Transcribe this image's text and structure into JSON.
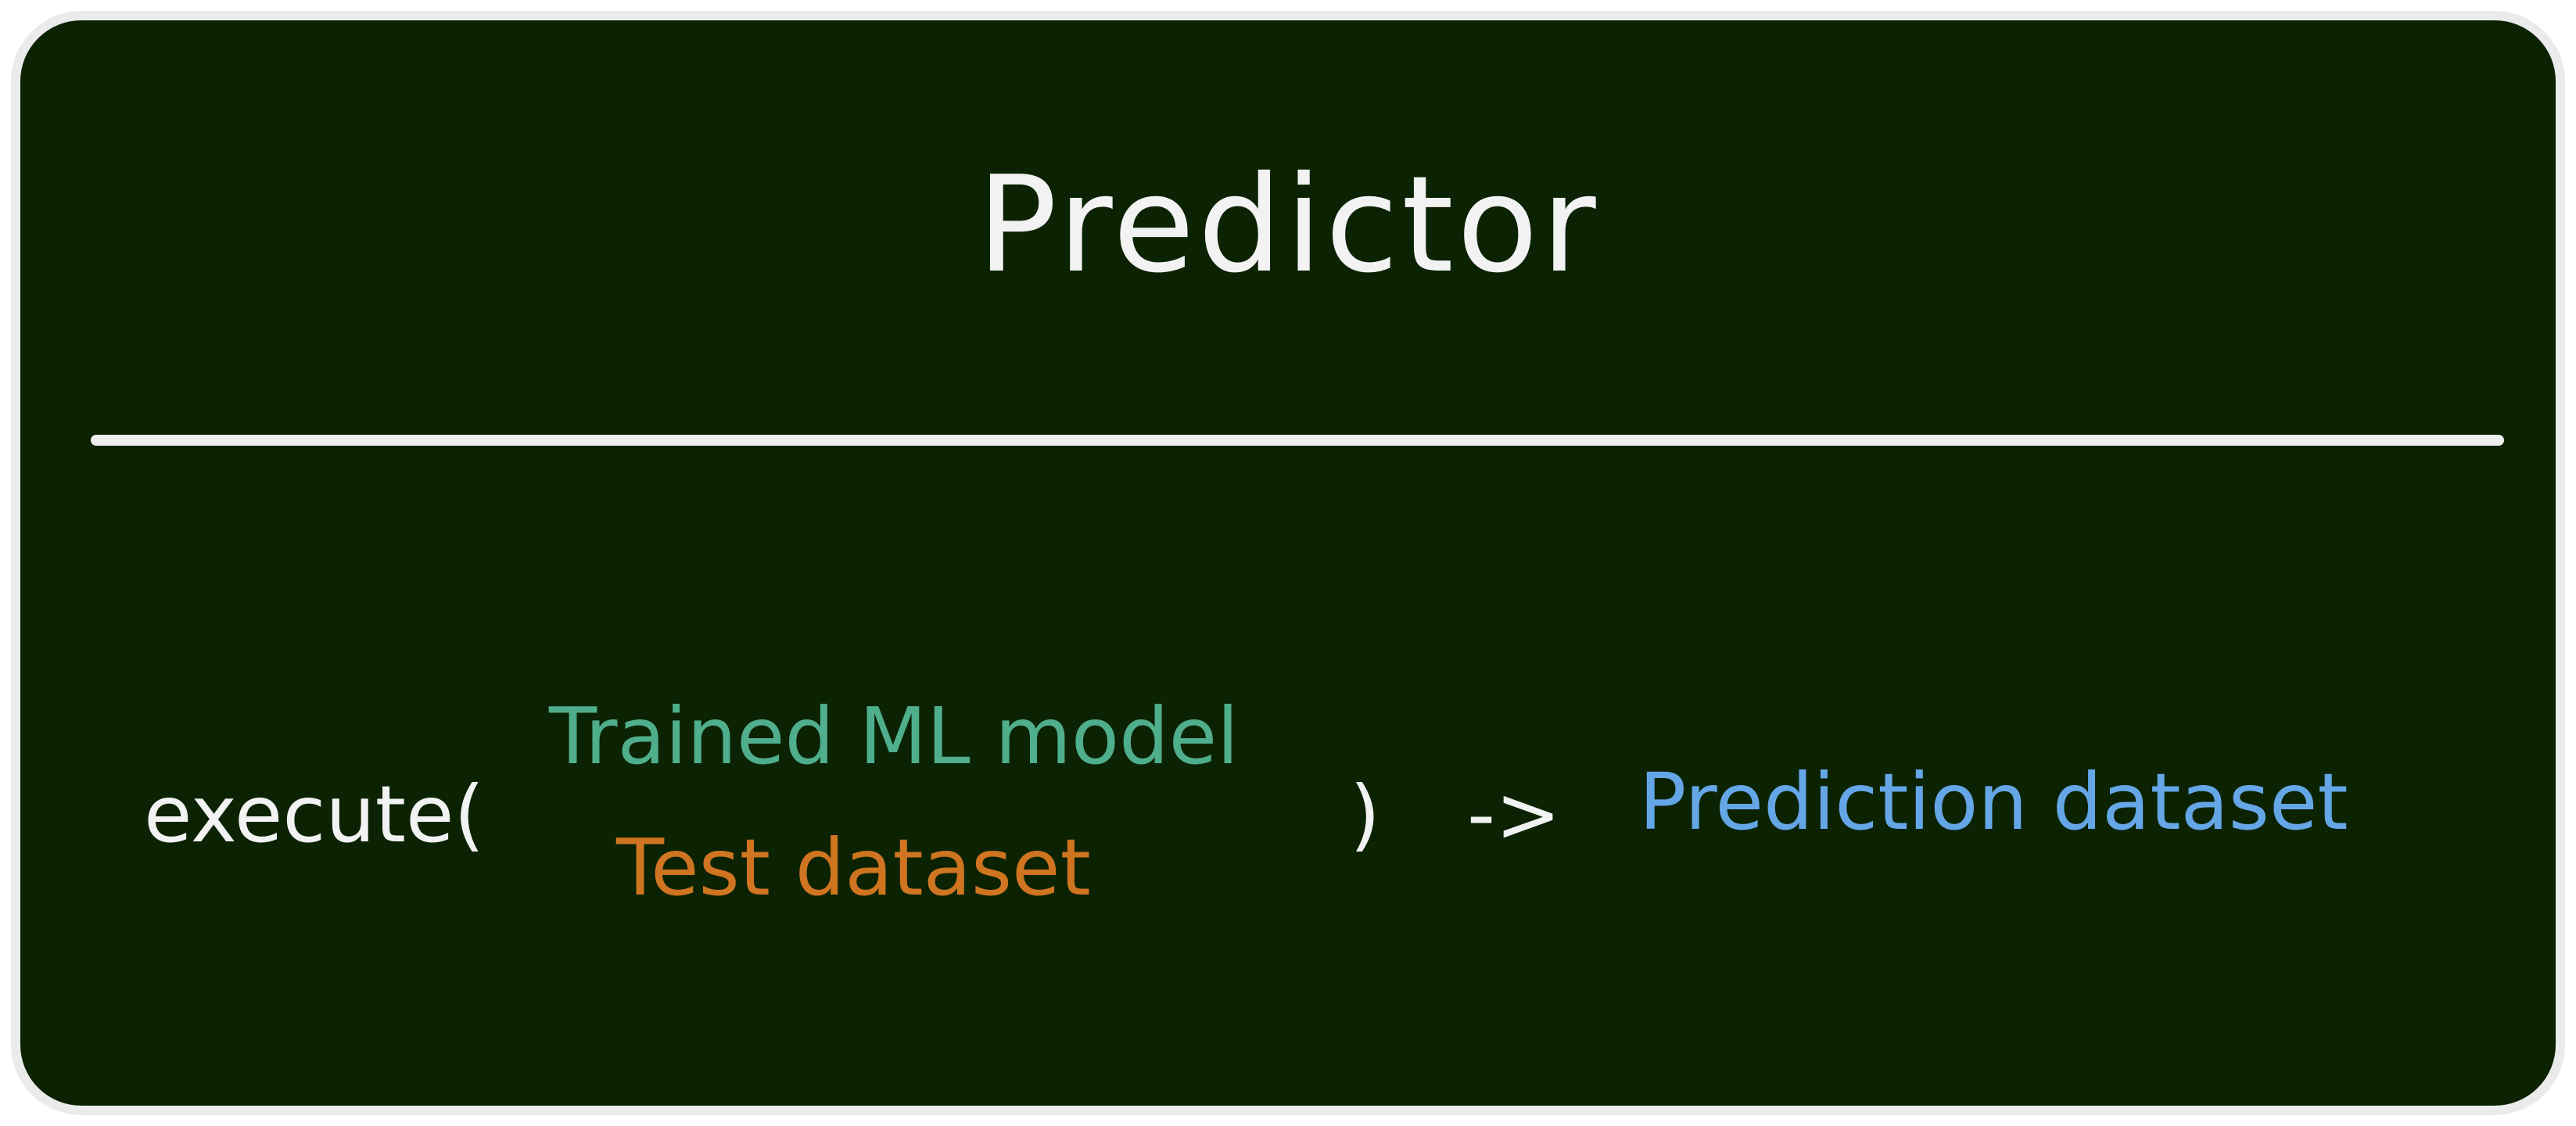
{
  "title": "Predictor",
  "call": {
    "function_open": "execute(",
    "inputs": [
      "Trained ML model",
      "Test dataset"
    ],
    "close": ")",
    "arrow": "->",
    "output": "Prediction dataset"
  },
  "colors": {
    "background": "#0b2203",
    "border": "#ebebeb",
    "title": "#f2f2f2",
    "model_input": "#4fae8c",
    "test_input": "#cf7420",
    "output": "#64a6e6"
  }
}
